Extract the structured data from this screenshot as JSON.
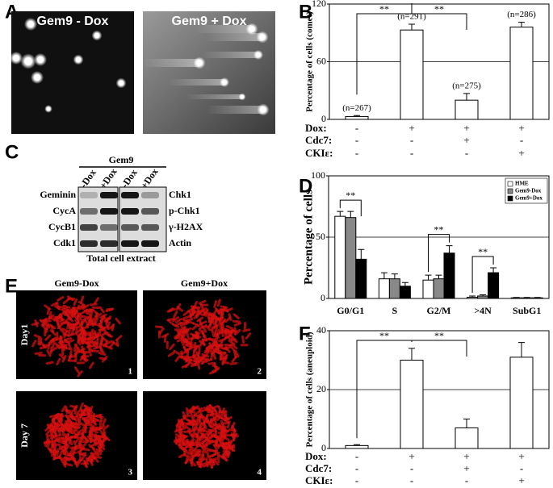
{
  "panels": {
    "labels": [
      "A",
      "B",
      "C",
      "D",
      "E",
      "F"
    ]
  },
  "panel_a": {
    "titles": [
      "Gem9 - Dox",
      "Gem9 + Dox"
    ]
  },
  "panel_c": {
    "group": "Gem9",
    "lanes": [
      "-Dox",
      "+Dox",
      "-Dox",
      "+Dox"
    ],
    "left_labels": [
      "Geminin",
      "CycA",
      "CycB1",
      "Cdk1"
    ],
    "right_labels": [
      "Chk1",
      "p-Chk1",
      "γ-H2AX",
      "Actin"
    ],
    "caption": "Total cell extract"
  },
  "panel_e": {
    "columns": [
      "Gem9-Dox",
      "Gem9+Dox"
    ],
    "rows": [
      "Day1",
      "Day 7"
    ],
    "numbers": [
      "1",
      "2",
      "3",
      "4"
    ]
  },
  "chart_data": [
    {
      "type": "bar",
      "ylabel": "Percentage of cells (comet)",
      "categories": [
        null,
        null,
        null,
        null
      ],
      "values": [
        3,
        93,
        20,
        96
      ],
      "errors": [
        1,
        6,
        7,
        5
      ],
      "annotations": [
        "(n=267)",
        "(n=291)",
        "(n=275)",
        "(n=286)"
      ],
      "color": "#ffffff",
      "ylim": [
        0,
        120
      ],
      "yticks": [
        0,
        60,
        120
      ],
      "grid": true,
      "conditions": [
        {
          "label": "Dox:",
          "marks": [
            "-",
            "+",
            "+",
            "+"
          ]
        },
        {
          "label": "Cdc7:",
          "marks": [
            "-",
            "-",
            "+",
            "-"
          ]
        },
        {
          "label": "CKIε:",
          "marks": [
            "-",
            "-",
            "-",
            "+"
          ]
        }
      ],
      "brackets": [
        {
          "between": [
            0,
            1
          ],
          "label": "**"
        },
        {
          "between": [
            1,
            2
          ],
          "label": "**"
        }
      ]
    },
    {
      "type": "bar",
      "ylabel": "Percentage of cells",
      "categories": [
        "G0/G1",
        "S",
        "G2/M",
        ">4N",
        "SubG1"
      ],
      "series": [
        {
          "name": "HME",
          "color": "#ffffff",
          "values": [
            67,
            16,
            15,
            1,
            0.5
          ],
          "errors": [
            4,
            5,
            4,
            1,
            0.3
          ]
        },
        {
          "name": "Gem9-Dox",
          "color": "#888888",
          "values": [
            66,
            16,
            16,
            2,
            0.5
          ],
          "errors": [
            5,
            4,
            3,
            1,
            0.3
          ]
        },
        {
          "name": "Gem9+Dox",
          "color": "#000000",
          "values": [
            32,
            10,
            37,
            21,
            0.5
          ],
          "errors": [
            8,
            3,
            6,
            4,
            0.3
          ]
        }
      ],
      "ylim": [
        0,
        100
      ],
      "yticks": [
        0,
        50,
        100
      ],
      "grid": true,
      "legend": "upper right",
      "brackets": [
        {
          "category": 0,
          "between": [
            0,
            2
          ],
          "label": "**"
        },
        {
          "category": 2,
          "between": [
            0,
            2
          ],
          "label": "**"
        },
        {
          "category": 3,
          "between": [
            0,
            2
          ],
          "label": "**"
        }
      ]
    },
    {
      "type": "bar",
      "ylabel": "Percentage of cells (aneuploid)",
      "categories": [
        null,
        null,
        null,
        null
      ],
      "values": [
        1,
        30,
        7,
        31
      ],
      "errors": [
        0.3,
        4,
        3,
        5
      ],
      "color": "#ffffff",
      "ylim": [
        0,
        40
      ],
      "yticks": [
        0,
        20,
        40
      ],
      "grid": true,
      "conditions": [
        {
          "label": "Dox:",
          "marks": [
            "-",
            "+",
            "+",
            "+"
          ]
        },
        {
          "label": "Cdc7:",
          "marks": [
            "-",
            "-",
            "+",
            "-"
          ]
        },
        {
          "label": "CKIε:",
          "marks": [
            "-",
            "-",
            "-",
            "+"
          ]
        }
      ],
      "brackets": [
        {
          "between": [
            0,
            1
          ],
          "label": "**"
        },
        {
          "between": [
            1,
            2
          ],
          "label": "**"
        }
      ]
    }
  ]
}
